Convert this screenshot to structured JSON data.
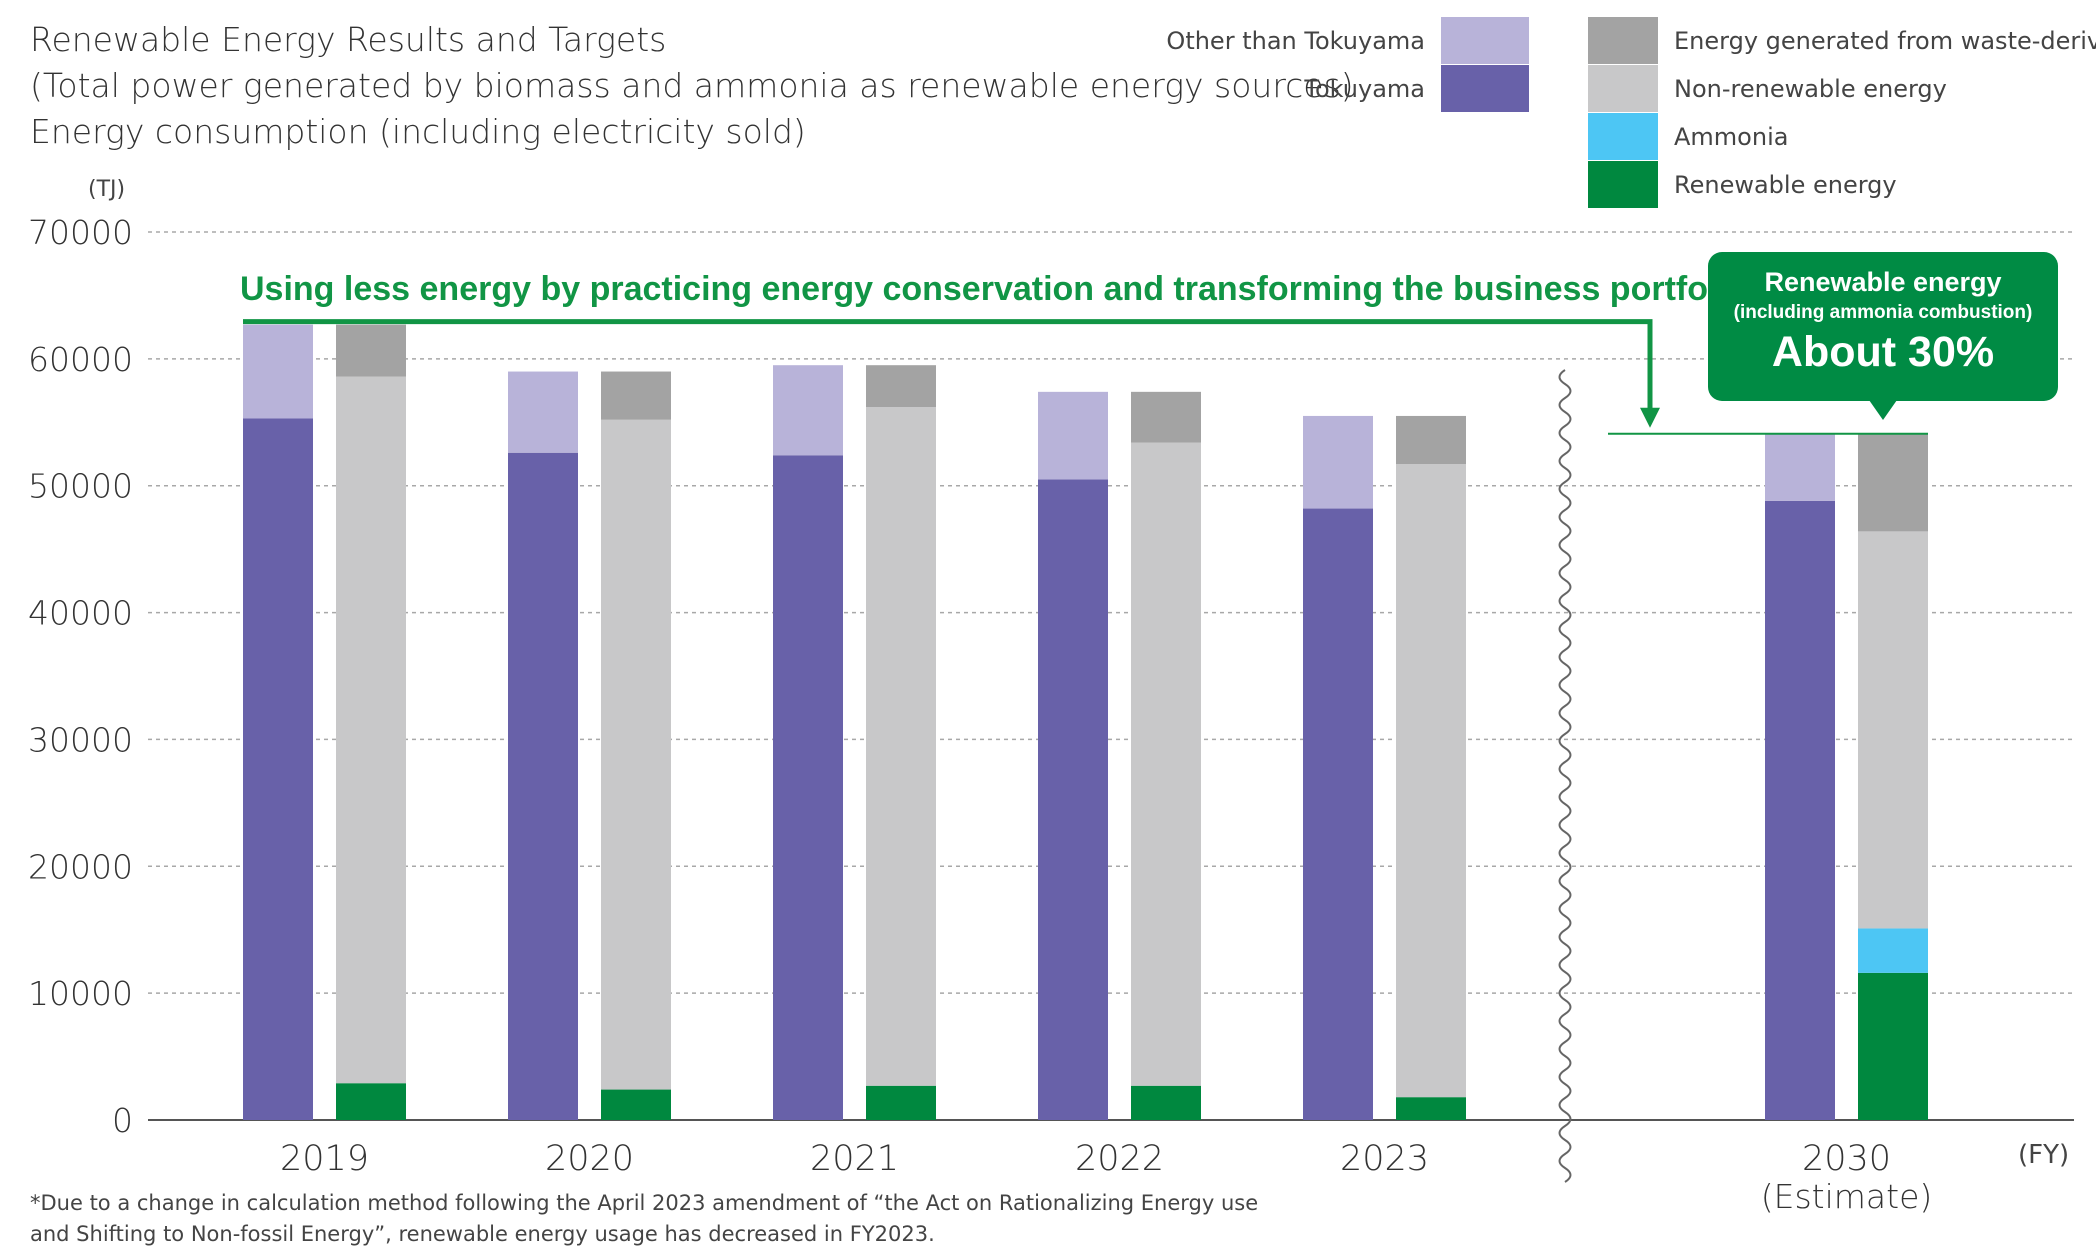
{
  "header": {
    "title": "Renewable Energy Results and Targets",
    "line2": "(Total power generated by biomass and ammonia as renewable energy sources)",
    "line3": "Energy consumption (including electricity sold)"
  },
  "legend": {
    "other_than_tokuyama": "Other than Tokuyama",
    "tokuyama": "Tokuyama",
    "waste_derived": "Energy generated from waste-derived",
    "non_renewable": "Non-renewable energy",
    "ammonia": "Ammonia",
    "renewable": "Renewable energy"
  },
  "colors": {
    "tokuyama": "#6861a9",
    "other_than_tokuyama": "#b8b3d9",
    "renewable": "#00883f",
    "ammonia": "#4dc6f4",
    "non_renewable": "#c8c8c9",
    "waste_derived": "#a3a3a3",
    "accent_green": "#119545"
  },
  "annotations": {
    "banner": "Using less energy by practicing energy conservation and transforming the business portfolio",
    "callout_line1": "Renewable energy",
    "callout_line2": "(including ammonia combustion)",
    "callout_line3": "About 30%"
  },
  "footnote": {
    "line1": "*Due to a change in calculation method following the April 2023 amendment of “the Act on Rationalizing Energy use",
    "line2": "and Shifting to Non-fossil Energy”, renewable energy usage has decreased in FY2023."
  },
  "chart_data": {
    "type": "bar",
    "stacked": true,
    "ylabel": "(TJ)",
    "xlabel": "(FY)",
    "ylim": [
      0,
      70000
    ],
    "yticks": [
      0,
      10000,
      20000,
      30000,
      40000,
      50000,
      60000,
      70000
    ],
    "grid": true,
    "axis_break_after": "2023",
    "categories": [
      "2019",
      "2020",
      "2021",
      "2022",
      "2023",
      "2030"
    ],
    "category_sublabels": [
      "",
      "",
      "",
      "",
      "",
      "(Estimate)"
    ],
    "left_bar_series": [
      {
        "name": "Tokuyama",
        "values": [
          55300,
          52600,
          52400,
          50500,
          48200,
          48800
        ]
      },
      {
        "name": "Other than Tokuyama",
        "values": [
          7400,
          6400,
          7100,
          6900,
          7300,
          5300
        ]
      }
    ],
    "right_bar_series": [
      {
        "name": "Renewable energy",
        "values": [
          2900,
          2400,
          2700,
          2700,
          1800,
          11600
        ]
      },
      {
        "name": "Ammonia",
        "values": [
          0,
          0,
          0,
          0,
          0,
          3500
        ]
      },
      {
        "name": "Non-renewable energy",
        "values": [
          55700,
          52800,
          53500,
          50700,
          49900,
          31300
        ]
      },
      {
        "name": "Energy generated from waste-derived",
        "values": [
          4100,
          3800,
          3300,
          4000,
          3800,
          7700
        ]
      }
    ]
  }
}
